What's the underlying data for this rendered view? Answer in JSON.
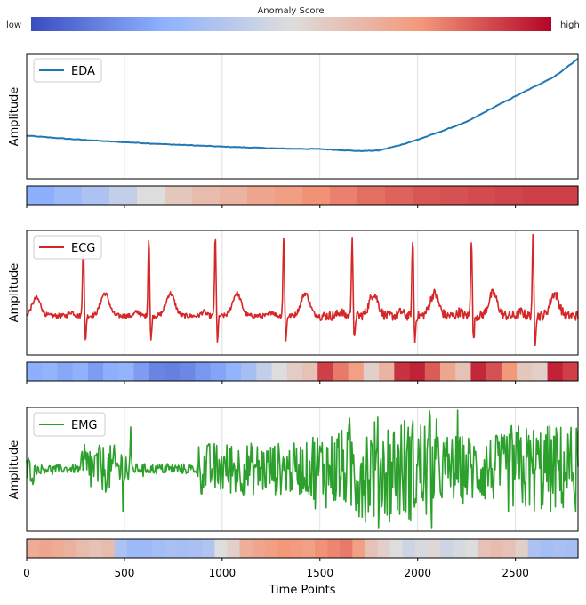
{
  "colorbar": {
    "title": "Anomaly Score",
    "low_label": "low",
    "high_label": "high",
    "colormap": "coolwarm",
    "colors": [
      "#3b4cc0",
      "#8db0fe",
      "#dddddd",
      "#f4987a",
      "#b40426"
    ]
  },
  "chart_data": [
    {
      "type": "line",
      "ylabel": "Amplitude",
      "grid": "vertical",
      "legend": {
        "placement": "top-left"
      },
      "xlim": [
        0,
        2820
      ],
      "series": [
        {
          "name": "EDA",
          "color": "#1f77b4",
          "points": [
            [
              0,
              0.22
            ],
            [
              200,
              0.19
            ],
            [
              400,
              0.165
            ],
            [
              700,
              0.135
            ],
            [
              1000,
              0.11
            ],
            [
              1300,
              0.09
            ],
            [
              1500,
              0.085
            ],
            [
              1700,
              0.065
            ],
            [
              1800,
              0.07
            ],
            [
              1900,
              0.12
            ],
            [
              2000,
              0.18
            ],
            [
              2100,
              0.25
            ],
            [
              2250,
              0.36
            ],
            [
              2400,
              0.52
            ],
            [
              2550,
              0.67
            ],
            [
              2700,
              0.82
            ],
            [
              2820,
              1.0
            ]
          ]
        }
      ],
      "anomaly_strip": [
        0.25,
        0.3,
        0.35,
        0.42,
        0.5,
        0.58,
        0.62,
        0.65,
        0.7,
        0.73,
        0.76,
        0.79,
        0.82,
        0.84,
        0.86,
        0.87,
        0.88,
        0.89,
        0.9,
        0.9
      ]
    },
    {
      "type": "line",
      "ylabel": "Amplitude",
      "grid": "vertical",
      "legend": {
        "placement": "top-left"
      },
      "xlim": [
        0,
        2820
      ],
      "series": [
        {
          "name": "ECG",
          "color": "#d62728",
          "r_peaks": [
            290,
            625,
            965,
            1315,
            1665,
            1975,
            2275,
            2590
          ]
        }
      ],
      "anomaly_strip": [
        0.25,
        0.27,
        0.23,
        0.26,
        0.2,
        0.25,
        0.27,
        0.2,
        0.14,
        0.13,
        0.15,
        0.19,
        0.22,
        0.27,
        0.33,
        0.42,
        0.5,
        0.56,
        0.6,
        0.9,
        0.8,
        0.72,
        0.55,
        0.65,
        0.92,
        0.95,
        0.85,
        0.7,
        0.6,
        0.94,
        0.87,
        0.75,
        0.58,
        0.55,
        0.95,
        0.9
      ]
    },
    {
      "type": "line",
      "ylabel": "Amplitude",
      "xlabel": "Time Points",
      "grid": "vertical",
      "legend": {
        "placement": "top-left"
      },
      "xlim": [
        0,
        2820
      ],
      "xticks": [
        "0",
        "500",
        "1000",
        "1500",
        "2000",
        "2500"
      ],
      "series": [
        {
          "name": "EMG",
          "color": "#2ca02c",
          "burst_segments": [
            [
              0,
              40,
              0.25
            ],
            [
              40,
              280,
              0.08
            ],
            [
              280,
              540,
              0.45
            ],
            [
              540,
              880,
              0.1
            ],
            [
              880,
              1450,
              0.5
            ],
            [
              1450,
              1650,
              0.75
            ],
            [
              1650,
              2100,
              1.0
            ],
            [
              2100,
              2450,
              0.65
            ],
            [
              2450,
              2820,
              0.85
            ]
          ]
        }
      ],
      "anomaly_strip": [
        0.68,
        0.7,
        0.68,
        0.66,
        0.62,
        0.6,
        0.62,
        0.35,
        0.3,
        0.3,
        0.32,
        0.34,
        0.33,
        0.34,
        0.36,
        0.5,
        0.55,
        0.67,
        0.7,
        0.72,
        0.75,
        0.74,
        0.72,
        0.76,
        0.78,
        0.8,
        0.72,
        0.6,
        0.55,
        0.5,
        0.45,
        0.48,
        0.52,
        0.45,
        0.48,
        0.5,
        0.6,
        0.62,
        0.6,
        0.55,
        0.35,
        0.32,
        0.34,
        0.33
      ]
    }
  ]
}
